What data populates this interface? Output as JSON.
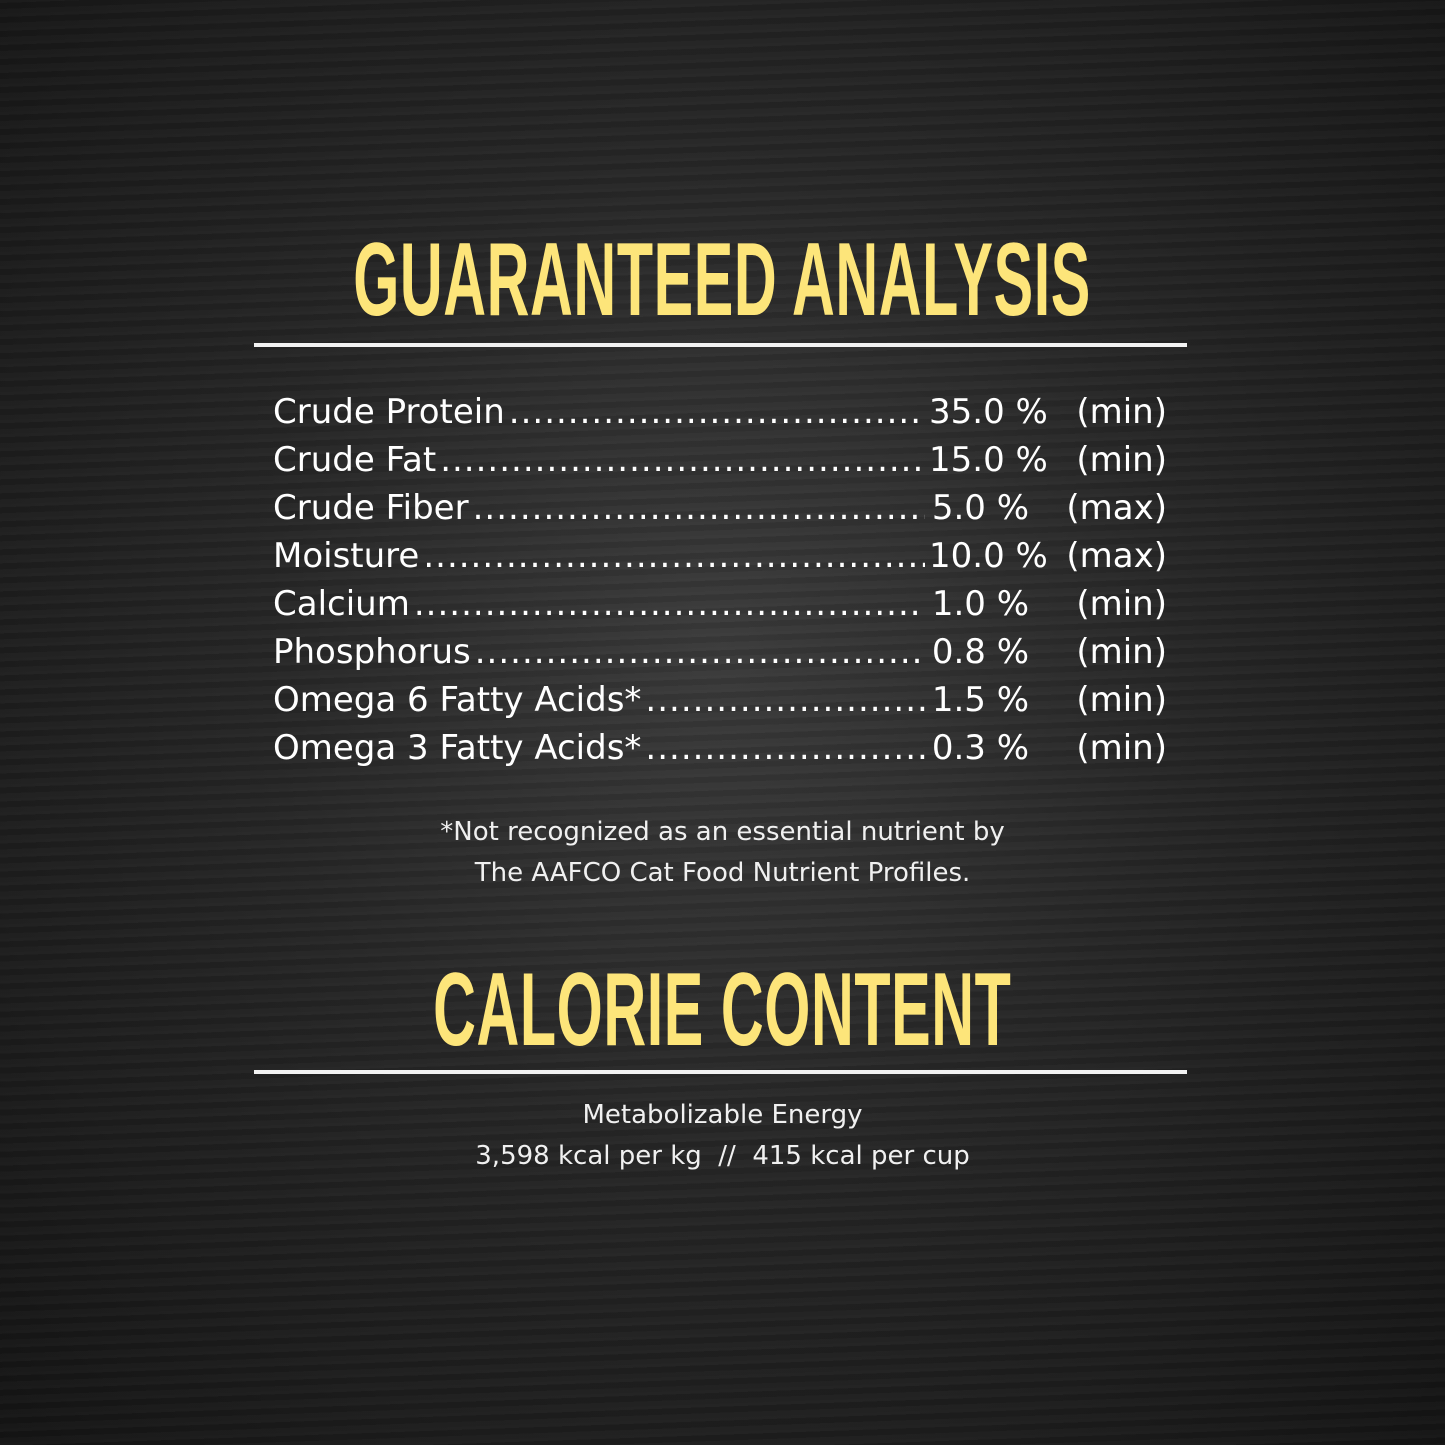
{
  "guaranteed_analysis": {
    "title": "GUARANTEED ANALYSIS",
    "rows": [
      {
        "label": "Crude Protein",
        "value": "35.0 %",
        "qualifier": "(min)"
      },
      {
        "label": "Crude Fat",
        "value": "15.0 %",
        "qualifier": "(min)"
      },
      {
        "label": "Crude Fiber",
        "value": "5.0 %",
        "qualifier": "(max)"
      },
      {
        "label": "Moisture",
        "value": "10.0 %",
        "qualifier": "(max)"
      },
      {
        "label": "Calcium",
        "value": "1.0 %",
        "qualifier": "(min)"
      },
      {
        "label": "Phosphorus",
        "value": "0.8 %",
        "qualifier": "(min)"
      },
      {
        "label": "Omega 6 Fatty Acids*",
        "value": "1.5 %",
        "qualifier": "(min)"
      },
      {
        "label": "Omega 3 Fatty Acids*",
        "value": "0.3 %",
        "qualifier": "(min)"
      }
    ],
    "footnote_line1": "*Not recognized as an essential nutrient by",
    "footnote_line2": "The AAFCO Cat Food Nutrient Profiles."
  },
  "calorie_content": {
    "title": "CALORIE CONTENT",
    "line1": "Metabolizable Energy",
    "line2": "3,598 kcal per kg  //  415 kcal per cup"
  },
  "colors": {
    "heading": "#fde57a",
    "text": "#ffffff",
    "background": "#222222"
  }
}
